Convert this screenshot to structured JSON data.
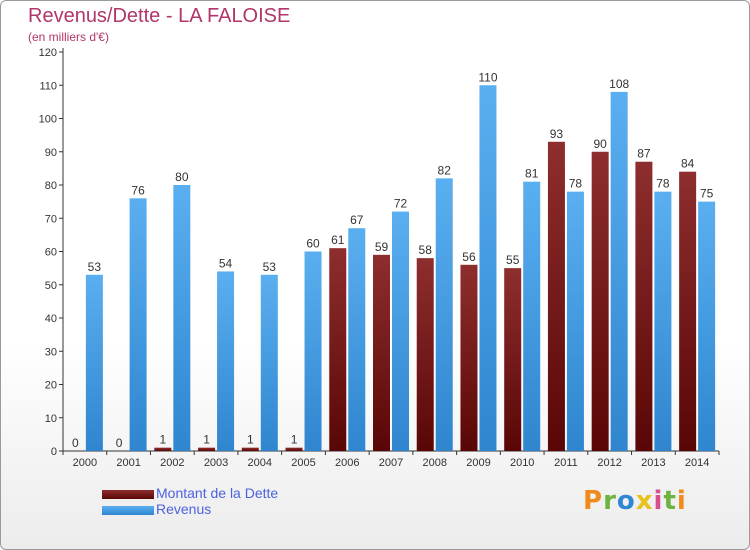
{
  "header": {
    "title": "Revenus/Dette - LA FALOISE",
    "subtitle": "(en milliers d'€)"
  },
  "colors": {
    "dette": "#7a1a1a",
    "revenus": "#4aa3e8",
    "title": "#b1366b",
    "legend_text": "#4d62e0"
  },
  "chart_data": {
    "type": "bar",
    "title": "Revenus/Dette - LA FALOISE",
    "ylabel": "(en milliers d'€)",
    "xlabel": "",
    "categories": [
      "2000",
      "2001",
      "2002",
      "2003",
      "2004",
      "2005",
      "2006",
      "2007",
      "2008",
      "2009",
      "2010",
      "2011",
      "2012",
      "2013",
      "2014"
    ],
    "series": [
      {
        "name": "Montant de la Dette",
        "values": [
          0,
          0,
          1,
          1,
          1,
          1,
          61,
          59,
          58,
          56,
          55,
          93,
          90,
          87,
          84
        ]
      },
      {
        "name": "Revenus",
        "values": [
          53,
          76,
          80,
          54,
          53,
          60,
          67,
          72,
          82,
          110,
          81,
          78,
          108,
          78,
          75
        ]
      }
    ],
    "ylim": [
      0,
      120
    ],
    "yticks": [
      0,
      10,
      20,
      30,
      40,
      50,
      60,
      70,
      80,
      90,
      100,
      110,
      120
    ],
    "grid": false,
    "legend_position": "bottom-left"
  },
  "legend": {
    "dette_label": "Montant de la Dette",
    "revenus_label": "Revenus"
  },
  "logo": {
    "letters": [
      "P",
      "r",
      "o",
      "x",
      "i",
      "t",
      "i"
    ],
    "colors": [
      "#f08a1c",
      "#6cb33f",
      "#2f86d1",
      "#e8c21a",
      "#d94e8f",
      "#6cb33f",
      "#f08a1c"
    ]
  }
}
